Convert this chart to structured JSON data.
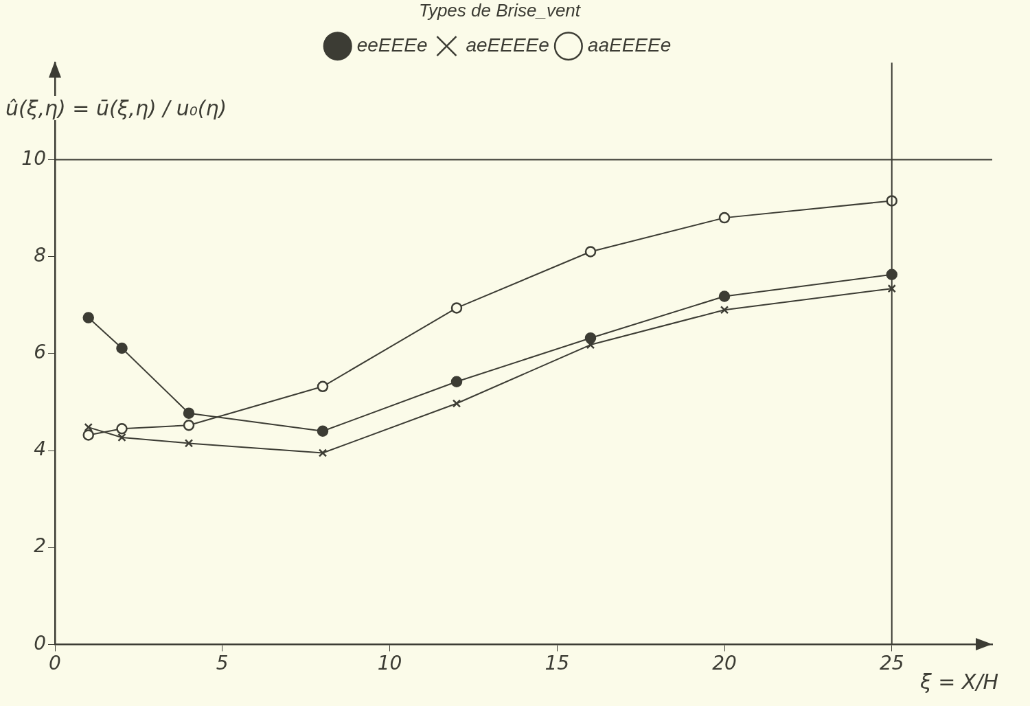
{
  "chart_data": {
    "type": "line",
    "xlabel": "ξ = X/H",
    "ylabel": "û(ξ,η) = ū(ξ,η) / u₀(η)",
    "legend_title": "Types de Brise_vent",
    "legend": "top",
    "x": [
      1,
      2,
      4,
      8,
      12,
      16,
      20,
      25
    ],
    "series": [
      {
        "name": "eeEEEe",
        "color": "#3c3c34",
        "marker": "circle",
        "values": [
          6.74,
          6.11,
          4.77,
          4.4,
          5.42,
          6.32,
          7.18,
          7.63
        ]
      },
      {
        "name": "aeEEEEe",
        "color": "#3c3c34",
        "marker": "cross",
        "values": [
          4.48,
          4.27,
          4.15,
          3.95,
          4.97,
          6.18,
          6.9,
          7.34
        ]
      },
      {
        "name": "aaEEEEe",
        "color": "#3c3c34",
        "marker": "circle",
        "values": [
          4.32,
          4.45,
          4.52,
          5.32,
          6.94,
          8.1,
          8.8,
          9.15
        ]
      }
    ],
    "xlim": [
      0,
      28
    ],
    "ylim": [
      0,
      12
    ],
    "ref_lines": [
      {
        "axis": "y",
        "value": 10,
        "color": "#3c3c34"
      },
      {
        "axis": "x",
        "value": 25,
        "color": "#3c3c34"
      }
    ],
    "xticks": [
      0,
      5,
      10,
      15,
      20,
      25
    ],
    "yticks": [
      0,
      2,
      4,
      6,
      8,
      10
    ],
    "grid": false,
    "line_style": "solid"
  }
}
